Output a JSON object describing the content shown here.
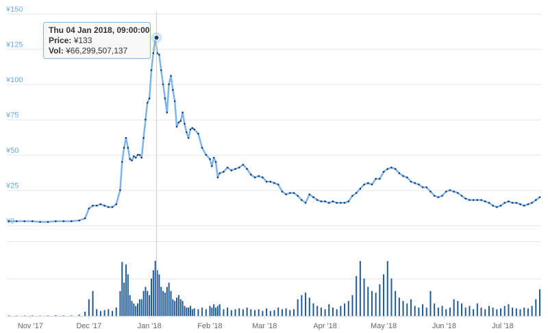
{
  "chart_data": {
    "type": "stock",
    "x": [
      "2017-10-21",
      "2017-10-25",
      "2017-10-29",
      "2017-11-02",
      "2017-11-06",
      "2017-11-10",
      "2017-11-14",
      "2017-11-18",
      "2017-11-22",
      "2017-11-26",
      "2017-11-29",
      "2017-12-01",
      "2017-12-03",
      "2017-12-05",
      "2017-12-07",
      "2017-12-09",
      "2017-12-11",
      "2017-12-13",
      "2017-12-15",
      "2017-12-17",
      "2017-12-18",
      "2017-12-19",
      "2017-12-20",
      "2017-12-21",
      "2017-12-22",
      "2017-12-23",
      "2017-12-24",
      "2017-12-25",
      "2017-12-26",
      "2017-12-27",
      "2017-12-28",
      "2017-12-29",
      "2017-12-30",
      "2017-12-31",
      "2018-01-01",
      "2018-01-02",
      "2018-01-03",
      "2018-01-04",
      "2018-01-05",
      "2018-01-06",
      "2018-01-07",
      "2018-01-08",
      "2018-01-09",
      "2018-01-10",
      "2018-01-11",
      "2018-01-12",
      "2018-01-13",
      "2018-01-14",
      "2018-01-15",
      "2018-01-16",
      "2018-01-17",
      "2018-01-18",
      "2018-01-19",
      "2018-01-20",
      "2018-01-21",
      "2018-01-22",
      "2018-01-23",
      "2018-01-24",
      "2018-01-26",
      "2018-01-28",
      "2018-01-30",
      "2018-02-01",
      "2018-02-02",
      "2018-02-03",
      "2018-02-04",
      "2018-02-05",
      "2018-02-06",
      "2018-02-08",
      "2018-02-10",
      "2018-02-12",
      "2018-02-14",
      "2018-02-16",
      "2018-02-18",
      "2018-02-20",
      "2018-02-22",
      "2018-02-24",
      "2018-02-26",
      "2018-02-28",
      "2018-03-02",
      "2018-03-04",
      "2018-03-06",
      "2018-03-08",
      "2018-03-10",
      "2018-03-12",
      "2018-03-14",
      "2018-03-16",
      "2018-03-18",
      "2018-03-20",
      "2018-03-22",
      "2018-03-24",
      "2018-03-26",
      "2018-03-28",
      "2018-03-30",
      "2018-04-01",
      "2018-04-03",
      "2018-04-05",
      "2018-04-07",
      "2018-04-09",
      "2018-04-11",
      "2018-04-13",
      "2018-04-15",
      "2018-04-17",
      "2018-04-19",
      "2018-04-21",
      "2018-04-23",
      "2018-04-25",
      "2018-04-27",
      "2018-04-29",
      "2018-05-01",
      "2018-05-03",
      "2018-05-05",
      "2018-05-07",
      "2018-05-09",
      "2018-05-11",
      "2018-05-13",
      "2018-05-15",
      "2018-05-17",
      "2018-05-19",
      "2018-05-21",
      "2018-05-23",
      "2018-05-25",
      "2018-05-27",
      "2018-05-29",
      "2018-05-31",
      "2018-06-02",
      "2018-06-04",
      "2018-06-06",
      "2018-06-08",
      "2018-06-10",
      "2018-06-12",
      "2018-06-14",
      "2018-06-16",
      "2018-06-18",
      "2018-06-20",
      "2018-06-22",
      "2018-06-24",
      "2018-06-26",
      "2018-06-28",
      "2018-06-30",
      "2018-07-02",
      "2018-07-04",
      "2018-07-06",
      "2018-07-08",
      "2018-07-10",
      "2018-07-12",
      "2018-07-14",
      "2018-07-16",
      "2018-07-18",
      "2018-07-20"
    ],
    "series": [
      {
        "type": "line",
        "color": "#7cb5ec",
        "marker_color": "#1a3a6b",
        "values": [
          3,
          3,
          3,
          3,
          2.5,
          2.5,
          3,
          3,
          3,
          3.5,
          5,
          12,
          14,
          14,
          15,
          14,
          13,
          13,
          15,
          25,
          45,
          55,
          62,
          55,
          47,
          46,
          49,
          48,
          50,
          50,
          48,
          62,
          75,
          87,
          90,
          110,
          122,
          133,
          122,
          121,
          110,
          100,
          90,
          80,
          100,
          106,
          96,
          88,
          70,
          73,
          74,
          80,
          72,
          66,
          62,
          68,
          69,
          68,
          65,
          55,
          50,
          47,
          42,
          48,
          45,
          34,
          37,
          38,
          41,
          39,
          40,
          41,
          43,
          40,
          36,
          34,
          35,
          34,
          31,
          31,
          30,
          29,
          24,
          22,
          23,
          23,
          21,
          18,
          16,
          22,
          20,
          18,
          17,
          17,
          16,
          17,
          16,
          16,
          16,
          17,
          21,
          23,
          26,
          29,
          30,
          29,
          33,
          33,
          38,
          40,
          41,
          40,
          37,
          35,
          34,
          31,
          30,
          29,
          27,
          27,
          24,
          21,
          20,
          21,
          24,
          25,
          24,
          23,
          21,
          19,
          18,
          18,
          18,
          18,
          17,
          16,
          14,
          13,
          14,
          16,
          17,
          16,
          16,
          15,
          14,
          15,
          16,
          18,
          20
        ]
      },
      {
        "type": "bar",
        "axis": "y2",
        "color": "#1f5a96",
        "values": [
          500000000.0,
          400000000.0,
          500000000.0,
          600000000.0,
          400000000.0,
          500000000.0,
          800000000.0,
          600000000.0,
          600000000.0,
          1500000000.0,
          5000000000.0,
          20000000000.0,
          30000000000.0,
          8000000000.0,
          6000000000.0,
          7000000000.0,
          8000000000.0,
          6000000000.0,
          10000000000.0,
          30000000000.0,
          65000000000.0,
          40000000000.0,
          62000000000.0,
          50000000000.0,
          25000000000.0,
          18000000000.0,
          15000000000.0,
          12000000000.0,
          15000000000.0,
          20000000000.0,
          20000000000.0,
          30000000000.0,
          35000000000.0,
          30000000000.0,
          25000000000.0,
          45000000000.0,
          55000000000.0,
          66299507137,
          55000000000.0,
          50000000000.0,
          35000000000.0,
          30000000000.0,
          28000000000.0,
          35000000000.0,
          40000000000.0,
          30000000000.0,
          20000000000.0,
          18000000000.0,
          22000000000.0,
          25000000000.0,
          20000000000.0,
          18000000000.0,
          12000000000.0,
          10000000000.0,
          10000000000.0,
          12000000000.0,
          8000000000.0,
          9000000000.0,
          8000000000.0,
          10000000000.0,
          8000000000.0,
          12000000000.0,
          10000000000.0,
          14000000000.0,
          10000000000.0,
          12000000000.0,
          14000000000.0,
          8000000000.0,
          10000000000.0,
          7000000000.0,
          8000000000.0,
          9000000000.0,
          8000000000.0,
          10000000000.0,
          8000000000.0,
          7000000000.0,
          8000000000.0,
          6000000000.0,
          9000000000.0,
          6000000000.0,
          7000000000.0,
          10000000000.0,
          8000000000.0,
          9000000000.0,
          7000000000.0,
          8000000000.0,
          20000000000.0,
          25000000000.0,
          28000000000.0,
          22000000000.0,
          15000000000.0,
          12000000000.0,
          10000000000.0,
          8000000000.0,
          14000000000.0,
          10000000000.0,
          8000000000.0,
          12000000000.0,
          15000000000.0,
          18000000000.0,
          25000000000.0,
          48000000000.0,
          66000000000.0,
          45000000000.0,
          35000000000.0,
          30000000000.0,
          28000000000.0,
          38000000000.0,
          50000000000.0,
          66000000000.0,
          45000000000.0,
          30000000000.0,
          22000000000.0,
          18000000000.0,
          15000000000.0,
          20000000000.0,
          12000000000.0,
          10000000000.0,
          14000000000.0,
          10000000000.0,
          30000000000.0,
          15000000000.0,
          10000000000.0,
          12000000000.0,
          8000000000.0,
          10000000000.0,
          20000000000.0,
          18000000000.0,
          15000000000.0,
          10000000000.0,
          12000000000.0,
          8000000000.0,
          15000000000.0,
          10000000000.0,
          8000000000.0,
          12000000000.0,
          10000000000.0,
          8000000000.0,
          9000000000.0,
          12000000000.0,
          14000000000.0,
          10000000000.0,
          9000000000.0,
          8000000000.0,
          10000000000.0,
          9000000000.0,
          12000000000.0,
          20000000000.0,
          32000000000.0
        ]
      }
    ],
    "xlim": [
      "2017-10-21",
      "2018-07-20"
    ],
    "xticks": [
      {
        "value": "2017-11-01",
        "label": "Nov '17"
      },
      {
        "value": "2017-12-01",
        "label": "Dec '17"
      },
      {
        "value": "2018-01-01",
        "label": "Jan '18"
      },
      {
        "value": "2018-02-01",
        "label": "Feb '18"
      },
      {
        "value": "2018-03-01",
        "label": "Mar '18"
      },
      {
        "value": "2018-04-01",
        "label": "Apr '18"
      },
      {
        "value": "2018-05-01",
        "label": "May '18"
      },
      {
        "value": "2018-06-01",
        "label": "Jun '18"
      },
      {
        "value": "2018-07-01",
        "label": "Jul '18"
      }
    ],
    "ylim": [
      0,
      150
    ],
    "yticks": [
      {
        "value": 0,
        "label": "¥0"
      },
      {
        "value": 25,
        "label": "¥25"
      },
      {
        "value": 50,
        "label": "¥50"
      },
      {
        "value": 75,
        "label": "¥75"
      },
      {
        "value": 100,
        "label": "¥100"
      },
      {
        "value": 125,
        "label": "¥125"
      },
      {
        "value": 150,
        "label": "¥150"
      }
    ],
    "y2lim": [
      0,
      90000000000.0
    ],
    "y2ticks": [
      0,
      45000000000.0,
      90000000000.0
    ],
    "grid": true,
    "tooltip": {
      "title": "Thu 04 Jan 2018, 09:00:00",
      "rows": [
        {
          "label": "Price:",
          "value": "¥133"
        },
        {
          "label": "Vol:",
          "value": "¥66,299,507,137"
        }
      ]
    }
  }
}
